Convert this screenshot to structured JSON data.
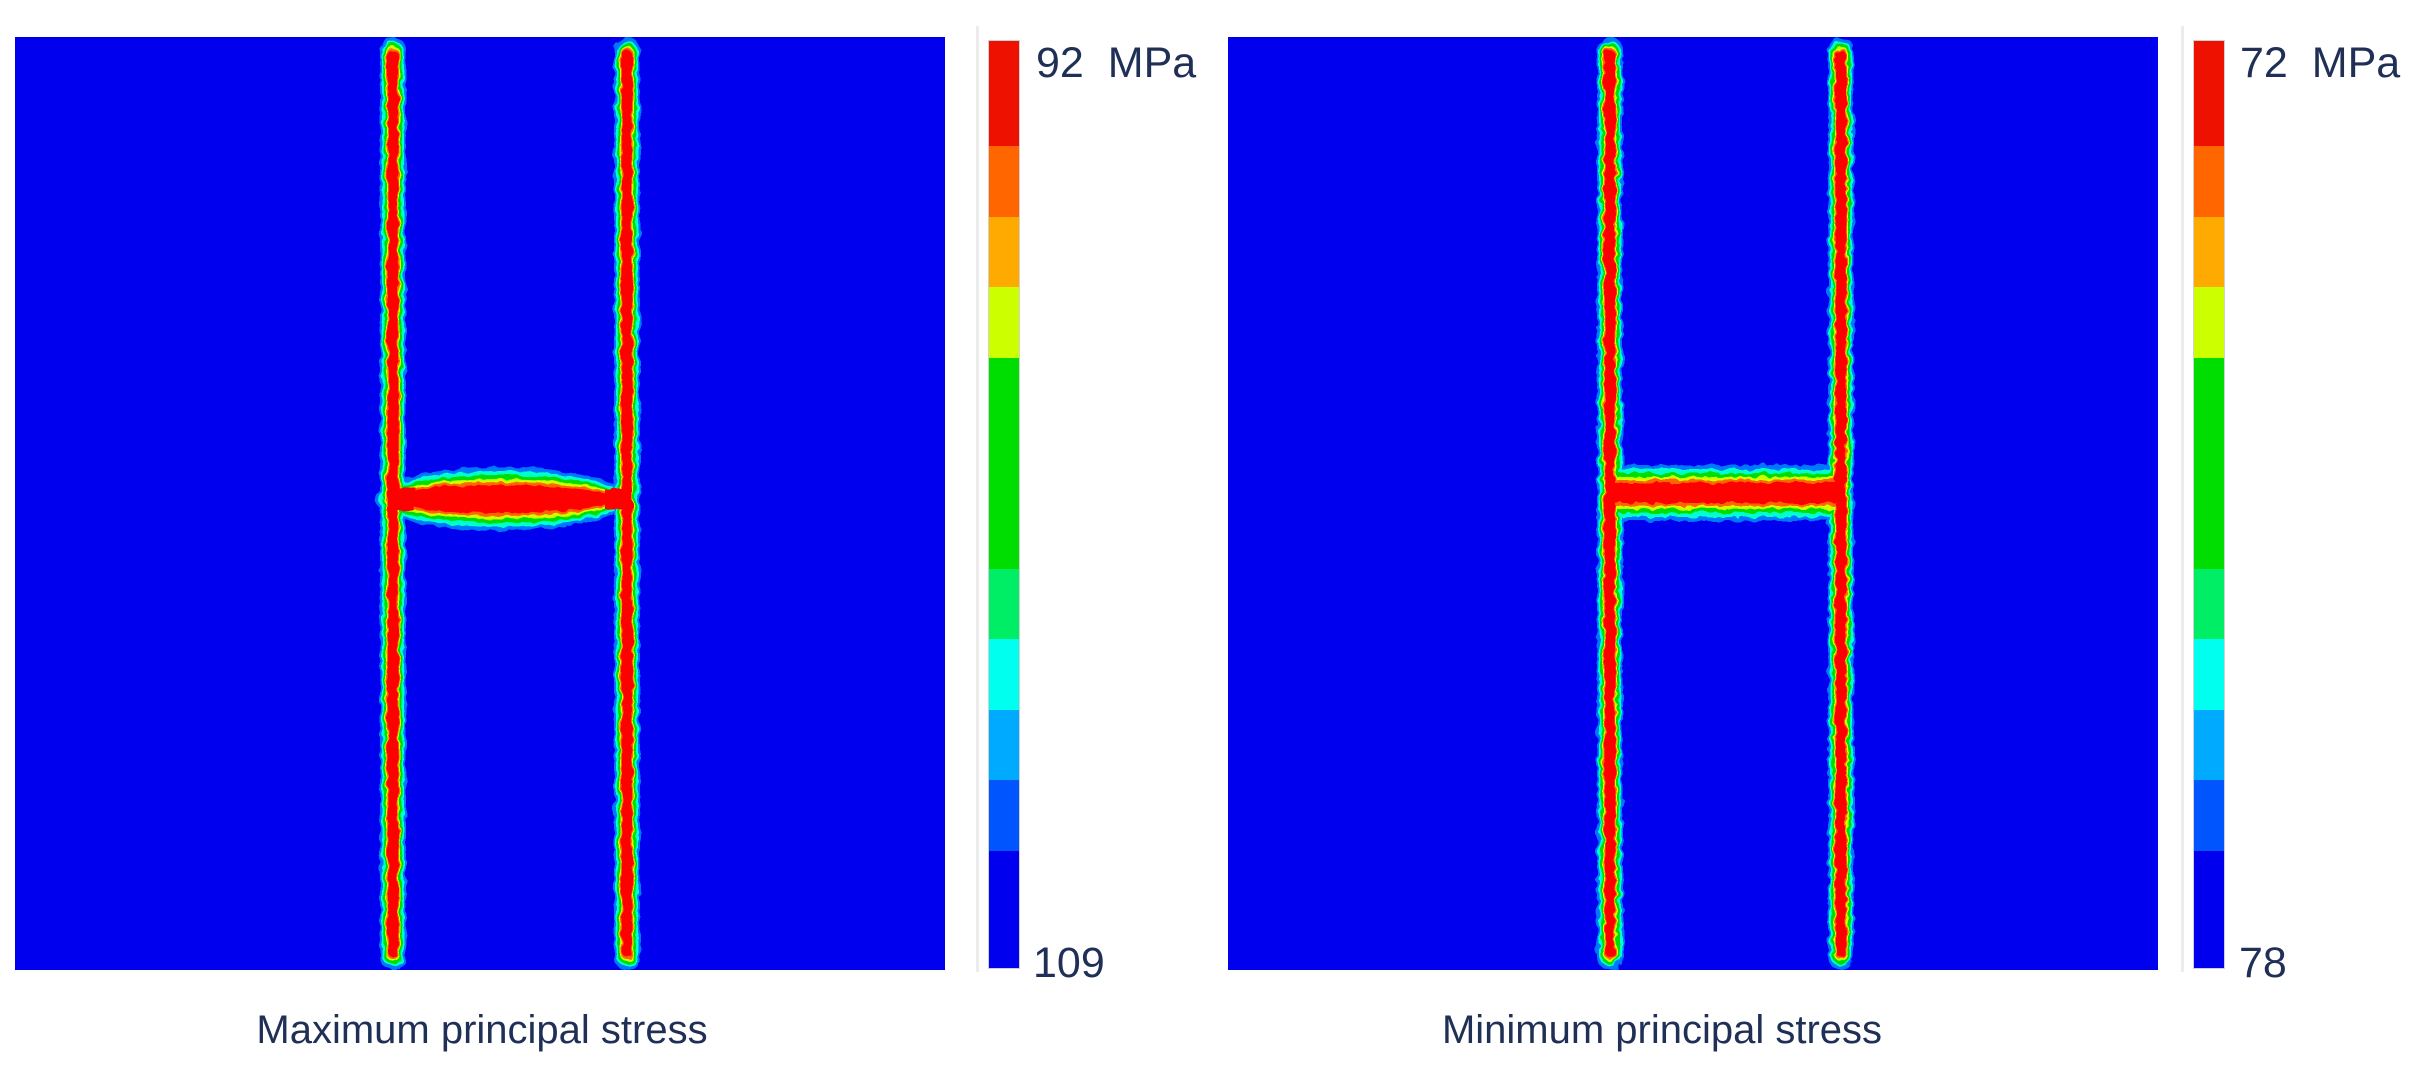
{
  "panels": [
    {
      "caption": "Maximum principal stress",
      "colorbar_max": "92",
      "colorbar_unit": "MPa",
      "colorbar_min": "109"
    },
    {
      "caption": "Minimum principal stress",
      "colorbar_max": "72",
      "colorbar_unit": "MPa",
      "colorbar_min": "78"
    }
  ],
  "colors": {
    "background_field": "#0000ee",
    "high": "#ff0000",
    "mid": "#00dd00",
    "low": "#0000ee",
    "colorbar_bands": [
      "#ee1100",
      "#ff6600",
      "#ffaa00",
      "#ccff00",
      "#00dd00",
      "#00dd00",
      "#00ee66",
      "#00ffee",
      "#00aaff",
      "#0055ff",
      "#0000ee"
    ]
  }
}
